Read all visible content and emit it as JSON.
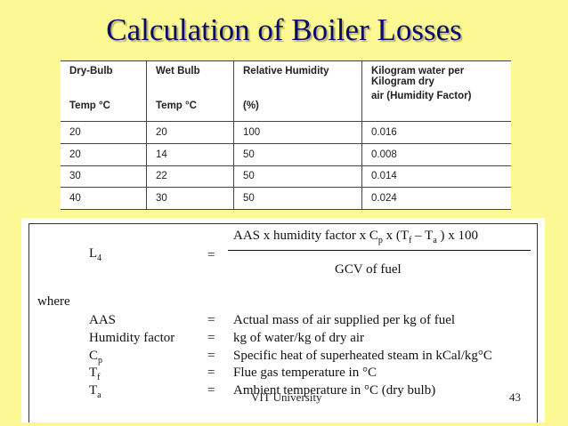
{
  "slide": {
    "title": "Calculation of Boiler Losses",
    "footer": "VIT University",
    "page_number": "43"
  },
  "humidity_table": {
    "header_row1": [
      "Dry-Bulb",
      "Wet Bulb",
      "Relative Humidity",
      "Kilogram water per Kilogram dry"
    ],
    "header_row2": [
      "Temp °C",
      "Temp °C",
      "(%)",
      "air (Humidity Factor)"
    ],
    "rows": [
      [
        "20",
        "20",
        "100",
        "0.016"
      ],
      [
        "20",
        "14",
        "50",
        "0.008"
      ],
      [
        "30",
        "22",
        "50",
        "0.014"
      ],
      [
        "40",
        "30",
        "50",
        "0.024"
      ]
    ]
  },
  "formula": {
    "lhs": "L",
    "lhs_sub": "4",
    "equals": "=",
    "numerator": "AAS x humidity factor x C",
    "numerator_sub_p": "p",
    "numerator_mid": " x (T",
    "numerator_sub_f": "f",
    "numerator_dash": " – T",
    "numerator_sub_a": "a",
    "numerator_end": " ) x 100",
    "denominator": "GCV of fuel"
  },
  "where_label": "where",
  "definitions": [
    {
      "term": "AAS",
      "sub": "",
      "def": "Actual mass of air supplied per kg of fuel"
    },
    {
      "term": "Humidity factor",
      "sub": "",
      "def": "kg of water/kg of dry air"
    },
    {
      "term": "C",
      "sub": "p",
      "def": "Specific heat of superheated steam in kCal/kg°C"
    },
    {
      "term": "T",
      "sub": "f",
      "def": "Flue gas temperature in °C"
    },
    {
      "term": "T",
      "sub": "a",
      "def": "Ambient temperature in °C (dry bulb)"
    }
  ]
}
